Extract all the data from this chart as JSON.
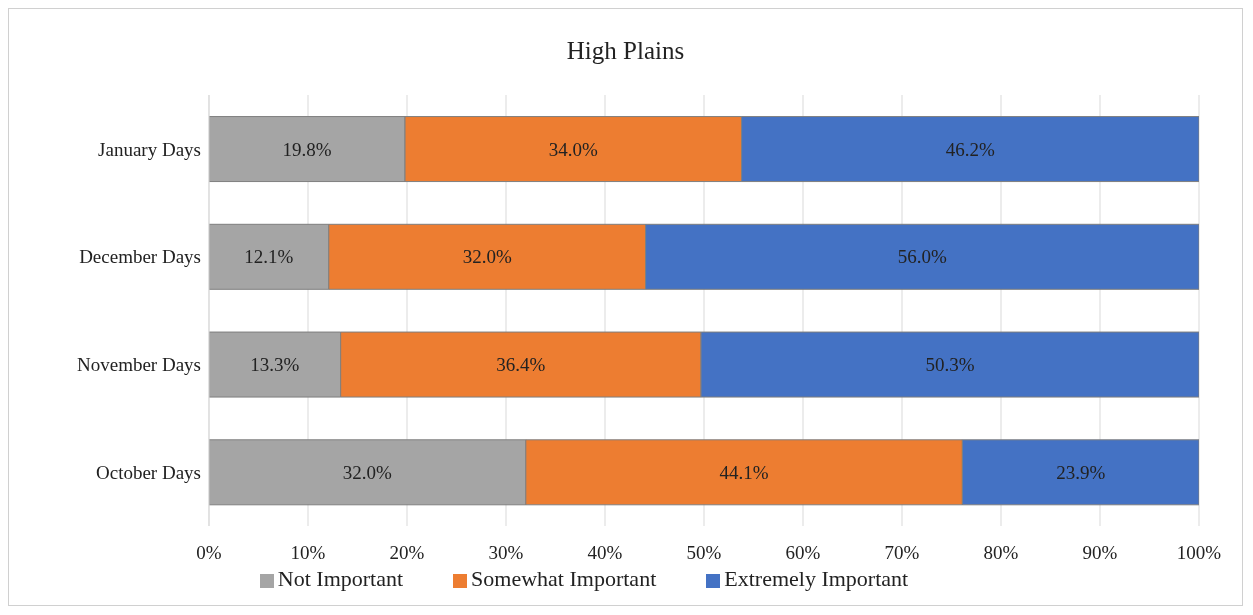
{
  "chart_data": {
    "type": "bar",
    "orientation": "horizontal",
    "stacked": true,
    "title": "High Plains",
    "categories": [
      "January Days",
      "December Days",
      "November Days",
      "October Days"
    ],
    "series": [
      {
        "name": "Not Important",
        "color": "#a5a5a5",
        "values": [
          19.8,
          12.1,
          13.3,
          32.0
        ],
        "value_labels": [
          "19.8%",
          "12.1%",
          "13.3%",
          "32.0%"
        ]
      },
      {
        "name": "Somewhat Important",
        "color": "#ed7d31",
        "values": [
          34.0,
          32.0,
          36.4,
          44.1
        ],
        "value_labels": [
          "34.0%",
          "32.0%",
          "36.4%",
          "44.1%"
        ]
      },
      {
        "name": "Extremely Important",
        "color": "#4472c4",
        "values": [
          46.2,
          56.0,
          50.3,
          23.9
        ],
        "value_labels": [
          "46.2%",
          "56.0%",
          "50.3%",
          "23.9%"
        ]
      }
    ],
    "xlim": [
      0,
      100
    ],
    "xticks": [
      {
        "value": 0,
        "label": "0%"
      },
      {
        "value": 10,
        "label": "10%"
      },
      {
        "value": 20,
        "label": "20%"
      },
      {
        "value": 30,
        "label": "30%"
      },
      {
        "value": 40,
        "label": "40%"
      },
      {
        "value": 50,
        "label": "50%"
      },
      {
        "value": 60,
        "label": "60%"
      },
      {
        "value": 70,
        "label": "70%"
      },
      {
        "value": 80,
        "label": "80%"
      },
      {
        "value": 90,
        "label": "90%"
      },
      {
        "value": 100,
        "label": "100%"
      }
    ],
    "grid": "x",
    "legend": "bottom"
  }
}
